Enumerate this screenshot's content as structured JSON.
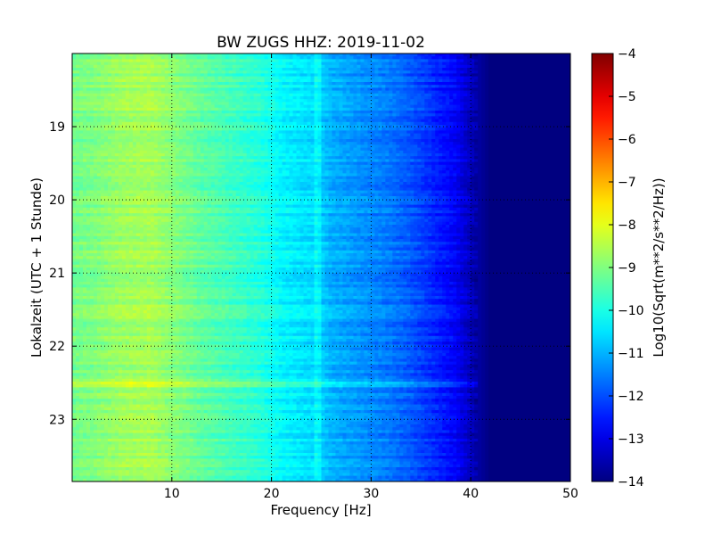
{
  "chart_data": {
    "type": "heatmap",
    "title": "BW ZUGS HHZ: 2019-11-02",
    "xlabel": "Frequency [Hz]",
    "ylabel": "Lokalzeit (UTC + 1 Stunde)",
    "xlim": [
      0,
      50
    ],
    "ylim_hours": [
      18.0,
      23.85
    ],
    "y_inverted": true,
    "x_ticks": [
      10,
      20,
      30,
      40,
      50
    ],
    "y_ticks": [
      19,
      20,
      21,
      22,
      23
    ],
    "grid": true,
    "grid_style": "dotted",
    "colormap": "jet",
    "colorbar": {
      "label": "Log10(Sqrt(m**2/s**2/Hz))",
      "range": [
        -14,
        -4
      ],
      "ticks": [
        -4,
        -5,
        -6,
        -7,
        -8,
        -9,
        -10,
        -11,
        -12,
        -13,
        -14
      ]
    },
    "spectral_profile": {
      "frequency_hz": [
        0,
        2,
        5,
        8,
        10,
        13,
        16,
        19,
        21,
        23,
        24.5,
        26,
        28,
        30,
        32,
        34,
        35.5,
        37,
        38.5,
        39.5,
        40.5,
        42,
        46,
        50
      ],
      "log10_amplitude": [
        -9.1,
        -9.0,
        -8.7,
        -8.6,
        -8.9,
        -9.3,
        -9.6,
        -9.9,
        -10.3,
        -10.5,
        -10.6,
        -11.0,
        -11.2,
        -11.4,
        -11.6,
        -11.9,
        -12.2,
        -12.5,
        -12.8,
        -13.2,
        -13.6,
        -14.0,
        -14.0,
        -14.0
      ]
    },
    "features": {
      "noise_floor_edge_hz": 39.3,
      "persistent_line_hz": 24.6,
      "broadband_event_hour": 22.52
    }
  }
}
